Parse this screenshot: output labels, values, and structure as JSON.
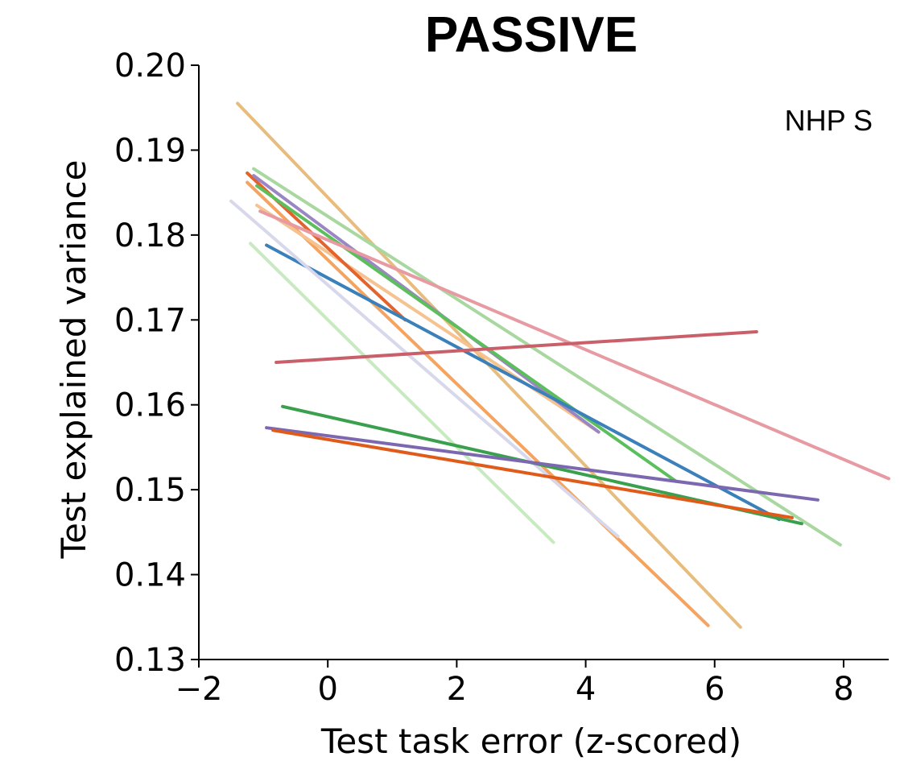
{
  "chart_data": {
    "type": "line",
    "title": "PASSIVE",
    "annotation": "NHP S",
    "xlabel": "Test task error (z-scored)",
    "ylabel": "Test explained variance",
    "xlim": [
      -2,
      8.7
    ],
    "ylim": [
      0.13,
      0.2
    ],
    "xticks": [
      -2,
      0,
      2,
      4,
      6,
      8
    ],
    "xtick_labels": [
      "−2",
      "0",
      "2",
      "4",
      "6",
      "8"
    ],
    "yticks": [
      0.13,
      0.14,
      0.15,
      0.16,
      0.17,
      0.18,
      0.19,
      0.2
    ],
    "ytick_labels": [
      "0.13",
      "0.14",
      "0.15",
      "0.16",
      "0.17",
      "0.18",
      "0.19",
      "0.20"
    ],
    "grid": false,
    "legend": "none",
    "series": [
      {
        "color": "#e8bc7c",
        "x": [
          -1.4,
          6.4
        ],
        "y": [
          0.1955,
          0.1338
        ]
      },
      {
        "color": "#f4a460",
        "x": [
          -1.25,
          5.9
        ],
        "y": [
          0.1862,
          0.134
        ]
      },
      {
        "color": "#f5c290",
        "x": [
          -1.1,
          4.2
        ],
        "y": [
          0.1835,
          0.1568
        ]
      },
      {
        "color": "#e4632c",
        "x": [
          -1.25,
          1.2
        ],
        "y": [
          0.1873,
          0.17
        ]
      },
      {
        "color": "#9a86c2",
        "x": [
          -1.15,
          4.2
        ],
        "y": [
          0.187,
          0.1568
        ]
      },
      {
        "color": "#a8d8a0",
        "x": [
          -1.15,
          7.95
        ],
        "y": [
          0.1878,
          0.1435
        ]
      },
      {
        "color": "#5cbf5c",
        "x": [
          -1.1,
          5.4
        ],
        "y": [
          0.1858,
          0.151
        ]
      },
      {
        "color": "#3a80bb",
        "x": [
          -0.95,
          7.0
        ],
        "y": [
          0.1788,
          0.1465
        ]
      },
      {
        "color": "#e89aa3",
        "x": [
          -1.05,
          8.7
        ],
        "y": [
          0.1828,
          0.1513
        ]
      },
      {
        "color": "#d8d8ec",
        "x": [
          -1.5,
          4.5
        ],
        "y": [
          0.184,
          0.1445
        ]
      },
      {
        "color": "#c8eac0",
        "x": [
          -1.2,
          3.5
        ],
        "y": [
          0.179,
          0.1438
        ]
      },
      {
        "color": "#c95f68",
        "x": [
          -0.8,
          6.65
        ],
        "y": [
          0.165,
          0.1686
        ]
      },
      {
        "color": "#3aa04e",
        "x": [
          -0.7,
          7.35
        ],
        "y": [
          0.1598,
          0.146
        ]
      },
      {
        "color": "#7c68b0",
        "x": [
          -0.95,
          7.6
        ],
        "y": [
          0.1573,
          0.1488
        ]
      },
      {
        "color": "#e05a1a",
        "x": [
          -0.85,
          7.2
        ],
        "y": [
          0.157,
          0.1467
        ]
      }
    ]
  }
}
